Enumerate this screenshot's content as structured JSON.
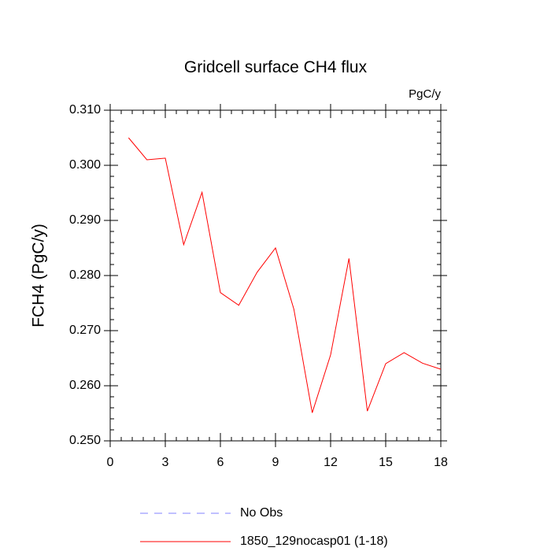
{
  "chart_data": {
    "type": "line",
    "title": "Gridcell surface CH4 flux",
    "units_label": "PgC/y",
    "y_label": "FCH4  (PgC/y)",
    "x": [
      1,
      2,
      3,
      4,
      5,
      6,
      7,
      8,
      9,
      10,
      11,
      12,
      13,
      14,
      15,
      16,
      17,
      18
    ],
    "series": [
      {
        "name": "No Obs",
        "color": "#8080ff",
        "dashed": true,
        "values": [
          null,
          null,
          null,
          null,
          null,
          null,
          null,
          null,
          null,
          null,
          null,
          null,
          null,
          null,
          null,
          null,
          null,
          null
        ]
      },
      {
        "name": "1850_129nocasp01 (1-18)",
        "color": "#ff0000",
        "dashed": false,
        "values": [
          0.305,
          0.301,
          0.3013,
          0.2856,
          0.2951,
          0.2769,
          0.2746,
          0.2806,
          0.285,
          0.2739,
          0.2551,
          0.2656,
          0.2831,
          0.2554,
          0.264,
          0.266,
          0.2641,
          0.263
        ]
      }
    ],
    "xlim": [
      0,
      18
    ],
    "xticks": [
      0,
      3,
      6,
      9,
      12,
      15,
      18
    ],
    "ylim": [
      0.25,
      0.31
    ],
    "yticks": [
      {
        "value": 0.25,
        "label": "0.250"
      },
      {
        "value": 0.26,
        "label": "0.260"
      },
      {
        "value": 0.27,
        "label": "0.270"
      },
      {
        "value": 0.28,
        "label": "0.280"
      },
      {
        "value": 0.29,
        "label": "0.290"
      },
      {
        "value": 0.3,
        "label": "0.300"
      },
      {
        "value": 0.31,
        "label": "0.310"
      }
    ],
    "grid": false
  }
}
